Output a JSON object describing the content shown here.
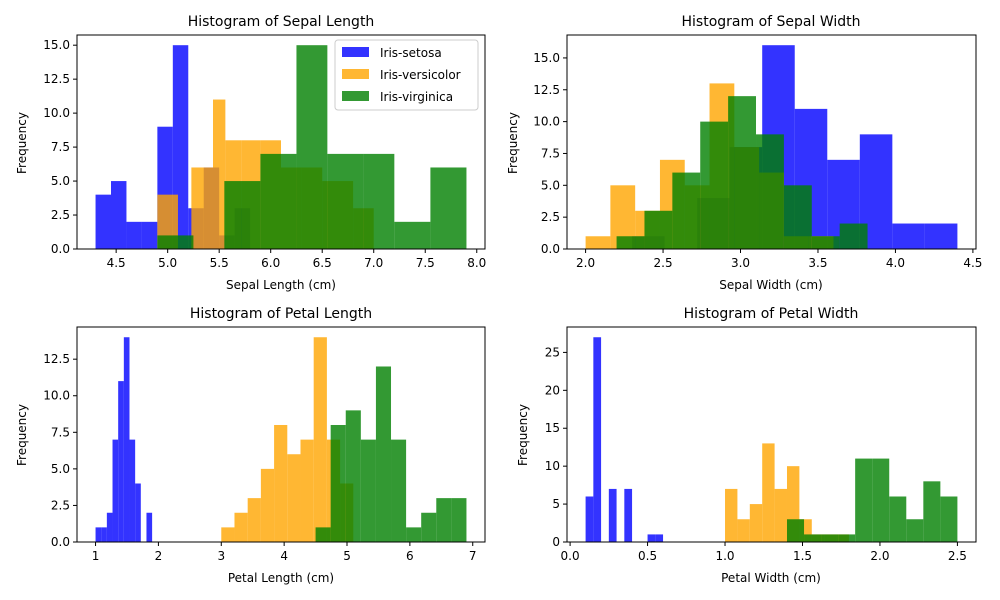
{
  "legend_colors": {
    "setosa": "#0000ff",
    "versicolor": "#ffa500",
    "virginica": "#008000"
  },
  "chart_data": [
    {
      "type": "bar",
      "title": "Histogram of Sepal Length",
      "xlabel": "Sepal Length (cm)",
      "ylabel": "Frequency",
      "xlim": [
        4.12,
        8.08
      ],
      "ylim": [
        0,
        15.75
      ],
      "xticks": [
        "4.5",
        "5.0",
        "5.5",
        "6.0",
        "6.5",
        "7.0",
        "7.5",
        "8.0"
      ],
      "yticks": [
        "0.0",
        "2.5",
        "5.0",
        "7.5",
        "10.0",
        "12.5",
        "15.0"
      ],
      "legend": {
        "position": "top-right",
        "entries": [
          "Iris-setosa",
          "Iris-versicolor",
          "Iris-virginica"
        ]
      },
      "series": [
        {
          "name": "Iris-setosa",
          "color": "#0000ff",
          "bins": [
            [
              4.3,
              4.45,
              4
            ],
            [
              4.45,
              4.6,
              5
            ],
            [
              4.6,
              4.75,
              2
            ],
            [
              4.75,
              4.9,
              2
            ],
            [
              4.9,
              5.05,
              9
            ],
            [
              5.05,
              5.2,
              15
            ],
            [
              5.2,
              5.35,
              3
            ],
            [
              5.35,
              5.5,
              6
            ],
            [
              5.5,
              5.65,
              1
            ],
            [
              5.65,
              5.8,
              3
            ]
          ]
        },
        {
          "name": "Iris-versicolor",
          "color": "#ffa500",
          "bins": [
            [
              4.9,
              5.1,
              4
            ],
            [
              5.1,
              5.23,
              0
            ],
            [
              5.23,
              5.44,
              6
            ],
            [
              5.44,
              5.56,
              11
            ],
            [
              5.56,
              5.72,
              8
            ],
            [
              5.72,
              5.9,
              8
            ],
            [
              5.9,
              6.1,
              8
            ],
            [
              6.1,
              6.3,
              6
            ],
            [
              6.3,
              6.5,
              6
            ],
            [
              6.5,
              6.8,
              5
            ],
            [
              6.8,
              7.0,
              3
            ]
          ]
        },
        {
          "name": "Iris-virginica",
          "color": "#008000",
          "bins": [
            [
              4.9,
              5.25,
              1
            ],
            [
              5.25,
              5.55,
              0
            ],
            [
              5.55,
              5.9,
              5
            ],
            [
              5.9,
              6.25,
              7
            ],
            [
              6.25,
              6.55,
              15
            ],
            [
              6.55,
              6.9,
              7
            ],
            [
              6.9,
              7.2,
              7
            ],
            [
              7.2,
              7.55,
              2
            ],
            [
              7.55,
              7.9,
              6
            ]
          ]
        }
      ]
    },
    {
      "type": "bar",
      "title": "Histogram of Sepal Width",
      "xlabel": "Sepal Width (cm)",
      "ylabel": "Frequency",
      "xlim": [
        1.88,
        4.52
      ],
      "ylim": [
        0,
        16.8
      ],
      "xticks": [
        "2.0",
        "2.5",
        "3.0",
        "3.5",
        "4.0",
        "4.5"
      ],
      "yticks": [
        "0.0",
        "2.5",
        "5.0",
        "7.5",
        "10.0",
        "12.5",
        "15.0"
      ],
      "series": [
        {
          "name": "Iris-setosa",
          "color": "#0000ff",
          "bins": [
            [
              2.3,
              2.51,
              1
            ],
            [
              2.51,
              2.72,
              0
            ],
            [
              2.72,
              2.93,
              4
            ],
            [
              2.93,
              3.14,
              8
            ],
            [
              3.14,
              3.35,
              16
            ],
            [
              3.35,
              3.56,
              11
            ],
            [
              3.56,
              3.77,
              7
            ],
            [
              3.77,
              3.98,
              9
            ],
            [
              3.98,
              4.19,
              2
            ],
            [
              4.19,
              4.4,
              2
            ]
          ]
        },
        {
          "name": "Iris-versicolor",
          "color": "#ffa500",
          "bins": [
            [
              2.0,
              2.16,
              1
            ],
            [
              2.16,
              2.32,
              5
            ],
            [
              2.32,
              2.48,
              3
            ],
            [
              2.48,
              2.64,
              7
            ],
            [
              2.64,
              2.8,
              5
            ],
            [
              2.8,
              2.96,
              13
            ],
            [
              2.96,
              3.12,
              8
            ],
            [
              3.12,
              3.28,
              6
            ],
            [
              3.28,
              3.44,
              1
            ],
            [
              3.44,
              3.6,
              1
            ]
          ]
        },
        {
          "name": "Iris-virginica",
          "color": "#008000",
          "bins": [
            [
              2.2,
              2.38,
              1
            ],
            [
              2.38,
              2.56,
              3
            ],
            [
              2.56,
              2.74,
              6
            ],
            [
              2.74,
              2.92,
              10
            ],
            [
              2.92,
              3.1,
              12
            ],
            [
              3.1,
              3.28,
              9
            ],
            [
              3.28,
              3.46,
              5
            ],
            [
              3.46,
              3.64,
              1
            ],
            [
              3.64,
              3.82,
              2
            ]
          ]
        }
      ]
    },
    {
      "type": "bar",
      "title": "Histogram of Petal Length",
      "xlabel": "Petal Length (cm)",
      "ylabel": "Frequency",
      "xlim": [
        0.705,
        7.195
      ],
      "ylim": [
        0,
        14.7
      ],
      "xticks": [
        "1",
        "2",
        "3",
        "4",
        "5",
        "6",
        "7"
      ],
      "yticks": [
        "0.0",
        "2.5",
        "5.0",
        "7.5",
        "10.0",
        "12.5"
      ],
      "series": [
        {
          "name": "Iris-setosa",
          "color": "#0000ff",
          "bins": [
            [
              1.0,
              1.09,
              1
            ],
            [
              1.09,
              1.18,
              1
            ],
            [
              1.18,
              1.27,
              2
            ],
            [
              1.27,
              1.36,
              7
            ],
            [
              1.36,
              1.45,
              11
            ],
            [
              1.45,
              1.54,
              14
            ],
            [
              1.54,
              1.63,
              7
            ],
            [
              1.63,
              1.72,
              4
            ],
            [
              1.72,
              1.81,
              0
            ],
            [
              1.81,
              1.9,
              2
            ]
          ]
        },
        {
          "name": "Iris-versicolor",
          "color": "#ffa500",
          "bins": [
            [
              3.0,
              3.21,
              1
            ],
            [
              3.21,
              3.42,
              2
            ],
            [
              3.42,
              3.63,
              3
            ],
            [
              3.63,
              3.84,
              5
            ],
            [
              3.84,
              4.05,
              8
            ],
            [
              4.05,
              4.26,
              6
            ],
            [
              4.26,
              4.47,
              7
            ],
            [
              4.47,
              4.68,
              14
            ],
            [
              4.68,
              4.89,
              7
            ],
            [
              4.89,
              5.1,
              4
            ]
          ]
        },
        {
          "name": "Iris-virginica",
          "color": "#008000",
          "bins": [
            [
              4.5,
              4.74,
              1
            ],
            [
              4.74,
              4.98,
              8
            ],
            [
              4.98,
              5.22,
              9
            ],
            [
              5.22,
              5.46,
              7
            ],
            [
              5.46,
              5.7,
              12
            ],
            [
              5.7,
              5.94,
              7
            ],
            [
              5.94,
              6.18,
              1
            ],
            [
              6.18,
              6.42,
              2
            ],
            [
              6.42,
              6.66,
              3
            ],
            [
              6.66,
              6.9,
              3
            ]
          ]
        }
      ]
    },
    {
      "type": "bar",
      "title": "Histogram of Petal Width",
      "xlabel": "Petal Width (cm)",
      "ylabel": "Frequency",
      "xlim": [
        -0.02,
        2.62
      ],
      "ylim": [
        0,
        28.35
      ],
      "xticks": [
        "0.0",
        "0.5",
        "1.0",
        "1.5",
        "2.0",
        "2.5"
      ],
      "yticks": [
        "0",
        "5",
        "10",
        "15",
        "20",
        "25"
      ],
      "series": [
        {
          "name": "Iris-setosa",
          "color": "#0000ff",
          "bins": [
            [
              0.1,
              0.15,
              6
            ],
            [
              0.15,
              0.2,
              27
            ],
            [
              0.2,
              0.25,
              0
            ],
            [
              0.25,
              0.3,
              7
            ],
            [
              0.3,
              0.35,
              0
            ],
            [
              0.35,
              0.4,
              7
            ],
            [
              0.4,
              0.45,
              0
            ],
            [
              0.45,
              0.5,
              0
            ],
            [
              0.5,
              0.55,
              1
            ],
            [
              0.55,
              0.6,
              1
            ]
          ]
        },
        {
          "name": "Iris-versicolor",
          "color": "#ffa500",
          "bins": [
            [
              1.0,
              1.08,
              7
            ],
            [
              1.08,
              1.16,
              3
            ],
            [
              1.16,
              1.24,
              5
            ],
            [
              1.24,
              1.32,
              13
            ],
            [
              1.32,
              1.4,
              7
            ],
            [
              1.4,
              1.48,
              10
            ],
            [
              1.48,
              1.56,
              3
            ],
            [
              1.56,
              1.64,
              1
            ],
            [
              1.64,
              1.72,
              1
            ],
            [
              1.72,
              1.8,
              1
            ]
          ]
        },
        {
          "name": "Iris-virginica",
          "color": "#008000",
          "bins": [
            [
              1.4,
              1.51,
              3
            ],
            [
              1.51,
              1.62,
              1
            ],
            [
              1.62,
              1.73,
              1
            ],
            [
              1.73,
              1.84,
              1
            ],
            [
              1.84,
              1.95,
              11
            ],
            [
              1.95,
              2.06,
              11
            ],
            [
              2.06,
              2.17,
              6
            ],
            [
              2.17,
              2.28,
              3
            ],
            [
              2.28,
              2.39,
              8
            ],
            [
              2.39,
              2.5,
              6
            ]
          ]
        }
      ]
    }
  ]
}
